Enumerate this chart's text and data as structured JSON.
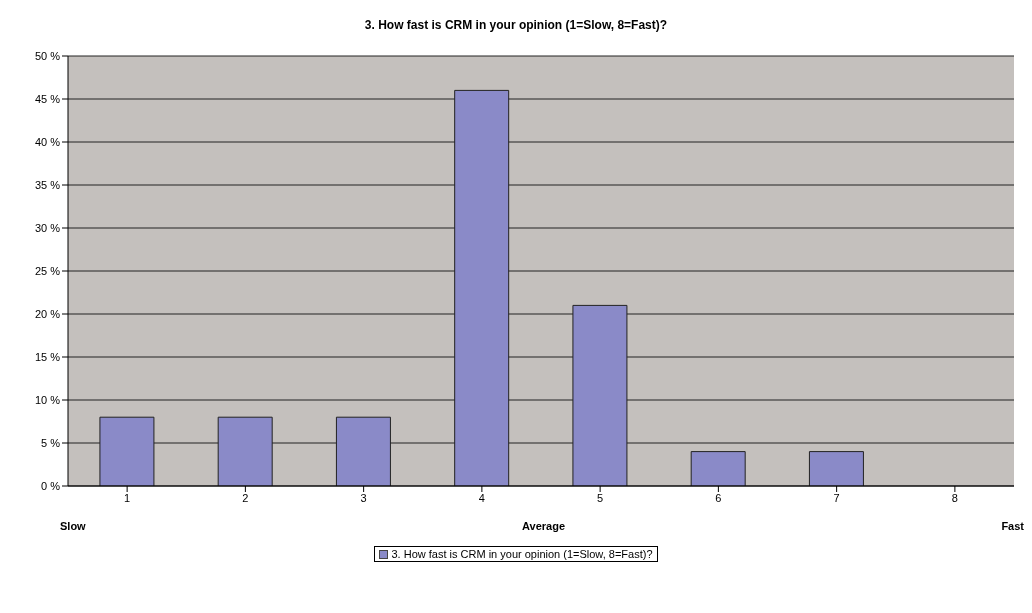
{
  "chart_data": {
    "type": "bar",
    "title": "3. How fast is CRM in your opinion (1=Slow, 8=Fast)?",
    "categories": [
      "1",
      "2",
      "3",
      "4",
      "5",
      "6",
      "7",
      "8"
    ],
    "series": [
      {
        "name": "3. How fast is CRM in your opinion (1=Slow, 8=Fast)?",
        "color": "#8a8ac8",
        "values": [
          8,
          8,
          8,
          46,
          21,
          4,
          4,
          0
        ]
      }
    ],
    "ylim": [
      0,
      50
    ],
    "yticks": [
      {
        "value": 0,
        "label": "0 %"
      },
      {
        "value": 5,
        "label": "5 %"
      },
      {
        "value": 10,
        "label": "10 %"
      },
      {
        "value": 15,
        "label": "15 %"
      },
      {
        "value": 20,
        "label": "20 %"
      },
      {
        "value": 25,
        "label": "25 %"
      },
      {
        "value": 30,
        "label": "30 %"
      },
      {
        "value": 35,
        "label": "35 %"
      },
      {
        "value": 40,
        "label": "40 %"
      },
      {
        "value": 45,
        "label": "45 %"
      },
      {
        "value": 50,
        "label": "50 %"
      }
    ],
    "annotations": [
      "Slow",
      "Average",
      "Fast"
    ],
    "grid": "y",
    "legend": "bottom"
  }
}
